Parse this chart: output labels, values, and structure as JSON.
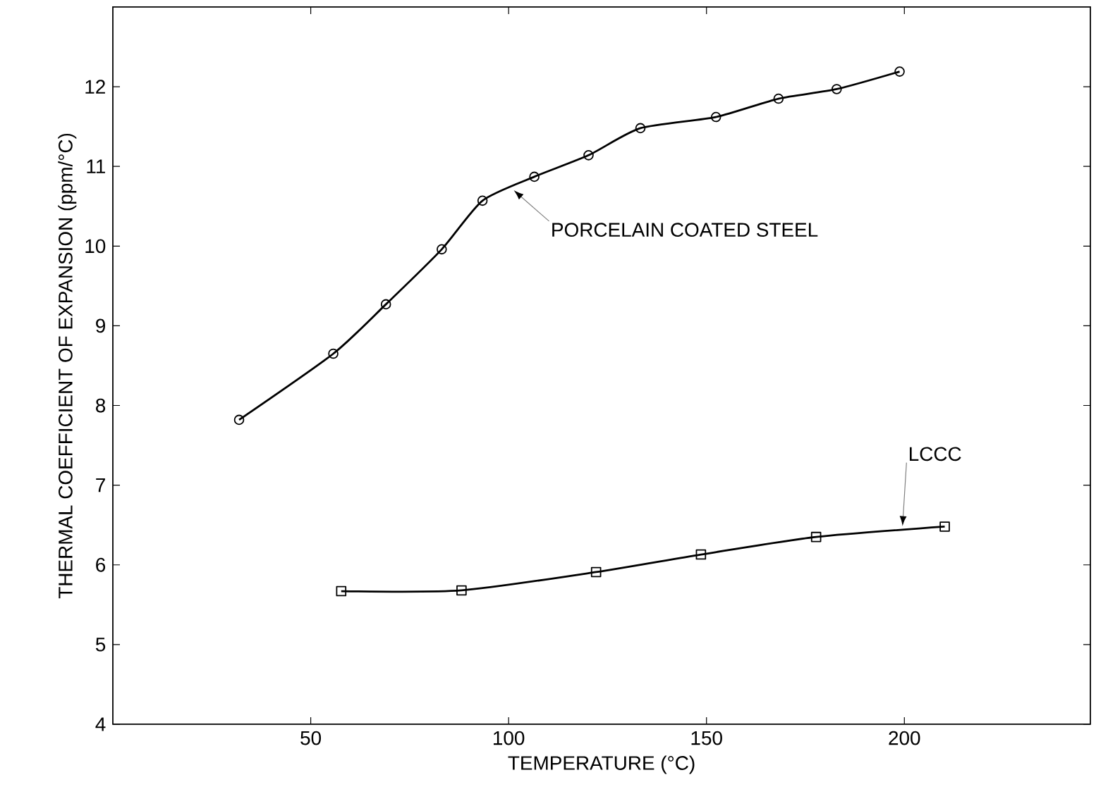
{
  "chart_data": {
    "type": "line",
    "xlabel": "TEMPERATURE (°C)",
    "ylabel": "THERMAL COEFFICIENT OF EXPANSION (ppm/°C)",
    "xlim": [
      0,
      247
    ],
    "xticks": [
      50,
      100,
      150,
      200
    ],
    "ylim": [
      4,
      13
    ],
    "yticks": [
      4,
      5,
      6,
      7,
      8,
      9,
      10,
      11,
      12
    ],
    "grid": false,
    "legend": false,
    "series": [
      {
        "name": "PORCELAIN COATED STEEL",
        "color": "#000000",
        "marker": "circle",
        "x": [
          31.9,
          55.7,
          69.0,
          83.1,
          93.4,
          106.5,
          120.2,
          133.3,
          152.4,
          168.2,
          182.9,
          198.8
        ],
        "values": [
          7.82,
          8.65,
          9.27,
          9.96,
          10.57,
          10.87,
          11.14,
          11.48,
          11.62,
          11.85,
          11.97,
          12.19
        ]
      },
      {
        "name": "LCCC",
        "color": "#000000",
        "marker": "square",
        "x": [
          57.7,
          88.1,
          122.1,
          148.6,
          177.7,
          210.2
        ],
        "values": [
          5.67,
          5.68,
          5.91,
          6.13,
          6.35,
          6.48
        ]
      }
    ]
  }
}
